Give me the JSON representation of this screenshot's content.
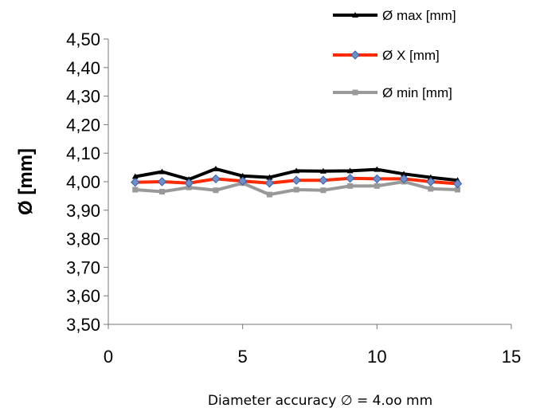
{
  "chart_data": {
    "type": "line",
    "title": "",
    "xlabel": "Diameter accuracy ∅ = 4.oo mm",
    "ylabel": "Ø [mm]",
    "xlim": [
      0,
      15
    ],
    "ylim": [
      3.5,
      4.5
    ],
    "x_ticks": [
      0,
      5,
      10,
      15
    ],
    "x_tick_labels": [
      "0",
      "5",
      "10",
      "15"
    ],
    "y_ticks": [
      3.5,
      3.6,
      3.7,
      3.8,
      3.9,
      4.0,
      4.1,
      4.2,
      4.3,
      4.4,
      4.5
    ],
    "y_tick_labels": [
      "3,50",
      "3,60",
      "3,70",
      "3,80",
      "3,90",
      "4,00",
      "4,10",
      "4,20",
      "4,30",
      "4,40",
      "4,50"
    ],
    "grid": false,
    "legend_position": "top-right",
    "x": [
      1,
      2,
      3,
      4,
      5,
      6,
      7,
      8,
      9,
      10,
      11,
      12,
      13
    ],
    "series": [
      {
        "name": "Ø max [mm]",
        "color": "#000000",
        "marker": "triangle",
        "values": [
          4.018,
          4.035,
          4.008,
          4.045,
          4.02,
          4.015,
          4.038,
          4.037,
          4.038,
          4.043,
          4.027,
          4.015,
          4.005
        ]
      },
      {
        "name": "Ø X [mm]",
        "color": "#ff2a00",
        "marker_color": "#6f8fc8",
        "marker": "diamond",
        "values": [
          3.998,
          4.0,
          3.995,
          4.01,
          4.002,
          3.995,
          4.005,
          4.005,
          4.012,
          4.01,
          4.01,
          4.0,
          3.993
        ]
      },
      {
        "name": "Ø min [mm]",
        "color": "#999999",
        "marker": "square",
        "values": [
          3.972,
          3.965,
          3.98,
          3.97,
          3.995,
          3.955,
          3.972,
          3.97,
          3.985,
          3.985,
          4.0,
          3.975,
          3.972
        ]
      }
    ]
  }
}
